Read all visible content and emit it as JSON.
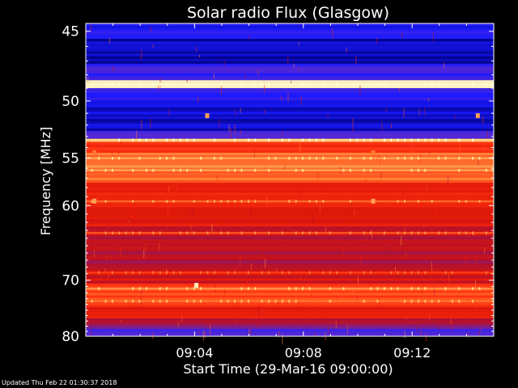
{
  "footer": "Updated Thu Feb 22 01:30:37 2018",
  "chart_data": {
    "type": "heatmap",
    "title": "Solar radio Flux (Glasgow)",
    "xlabel": "Start Time (29-Mar-16 09:00:00)",
    "ylabel": "Frequency [MHz]",
    "x_unit": "minutes after 09:00:00",
    "xlim": [
      0,
      15
    ],
    "ylim": [
      44.5,
      80
    ],
    "y_scale": "reciprocal",
    "x_ticks": [
      {
        "value": 4,
        "label": "09:04"
      },
      {
        "value": 8,
        "label": "09:08"
      },
      {
        "value": 12,
        "label": "09:12"
      }
    ],
    "y_ticks": [
      {
        "value": 45,
        "label": "45"
      },
      {
        "value": 50,
        "label": "50"
      },
      {
        "value": 55,
        "label": "55"
      },
      {
        "value": 60,
        "label": "60"
      },
      {
        "value": 70,
        "label": "70"
      },
      {
        "value": 80,
        "label": "80"
      }
    ],
    "colormap": [
      "#000080",
      "#1a1aff",
      "#5a2ad0",
      "#b01030",
      "#e01808",
      "#ff3010",
      "#ff7830",
      "#ffd880",
      "#ffffe0"
    ],
    "bands": [
      {
        "f_low": 44.5,
        "f_high": 45.5,
        "level": 0.12
      },
      {
        "f_low": 45.5,
        "f_high": 47.2,
        "level": 0.05
      },
      {
        "f_low": 47.2,
        "f_high": 48.4,
        "level": 0.18
      },
      {
        "f_low": 48.4,
        "f_high": 49.0,
        "level": 0.97
      },
      {
        "f_low": 49.0,
        "f_high": 50.5,
        "level": 0.14
      },
      {
        "f_low": 50.5,
        "f_high": 52.5,
        "level": 0.06
      },
      {
        "f_low": 52.5,
        "f_high": 53.2,
        "level": 0.2
      },
      {
        "f_low": 53.2,
        "f_high": 53.5,
        "level": 0.85
      },
      {
        "f_low": 53.5,
        "f_high": 54.5,
        "level": 0.62
      },
      {
        "f_low": 54.5,
        "f_high": 57.5,
        "level": 0.74
      },
      {
        "f_low": 57.5,
        "f_high": 60.5,
        "level": 0.55
      },
      {
        "f_low": 60.5,
        "f_high": 62.5,
        "level": 0.5
      },
      {
        "f_low": 62.5,
        "f_high": 65.5,
        "level": 0.42
      },
      {
        "f_low": 65.5,
        "f_high": 68.5,
        "level": 0.38
      },
      {
        "f_low": 68.5,
        "f_high": 70.5,
        "level": 0.46
      },
      {
        "f_low": 70.5,
        "f_high": 74.5,
        "level": 0.66
      },
      {
        "f_low": 74.5,
        "f_high": 76.5,
        "level": 0.5
      },
      {
        "f_low": 76.5,
        "f_high": 78.5,
        "level": 0.36
      },
      {
        "f_low": 78.5,
        "f_high": 80.0,
        "level": 0.22
      }
    ],
    "hot_lines": [
      {
        "f": 48.7,
        "level": 0.98
      },
      {
        "f": 53.3,
        "level": 0.88
      },
      {
        "f": 55.0,
        "level": 0.8
      },
      {
        "f": 56.2,
        "level": 0.8
      },
      {
        "f": 59.5,
        "level": 0.72
      },
      {
        "f": 63.3,
        "level": 0.68
      },
      {
        "f": 68.8,
        "level": 0.64
      },
      {
        "f": 71.3,
        "level": 0.78
      },
      {
        "f": 73.4,
        "level": 0.74
      }
    ],
    "spots": [
      {
        "t": 4.05,
        "f": 70.8,
        "level": 0.95
      },
      {
        "t": 4.45,
        "f": 51.2,
        "level": 0.8
      },
      {
        "t": 14.4,
        "f": 51.2,
        "level": 0.8
      },
      {
        "t": 0.3,
        "f": 59.5,
        "level": 0.8
      },
      {
        "t": 10.55,
        "f": 59.5,
        "level": 0.8
      },
      {
        "t": 0.3,
        "f": 54.5,
        "level": 0.75
      },
      {
        "t": 10.55,
        "f": 54.5,
        "level": 0.75
      }
    ]
  }
}
